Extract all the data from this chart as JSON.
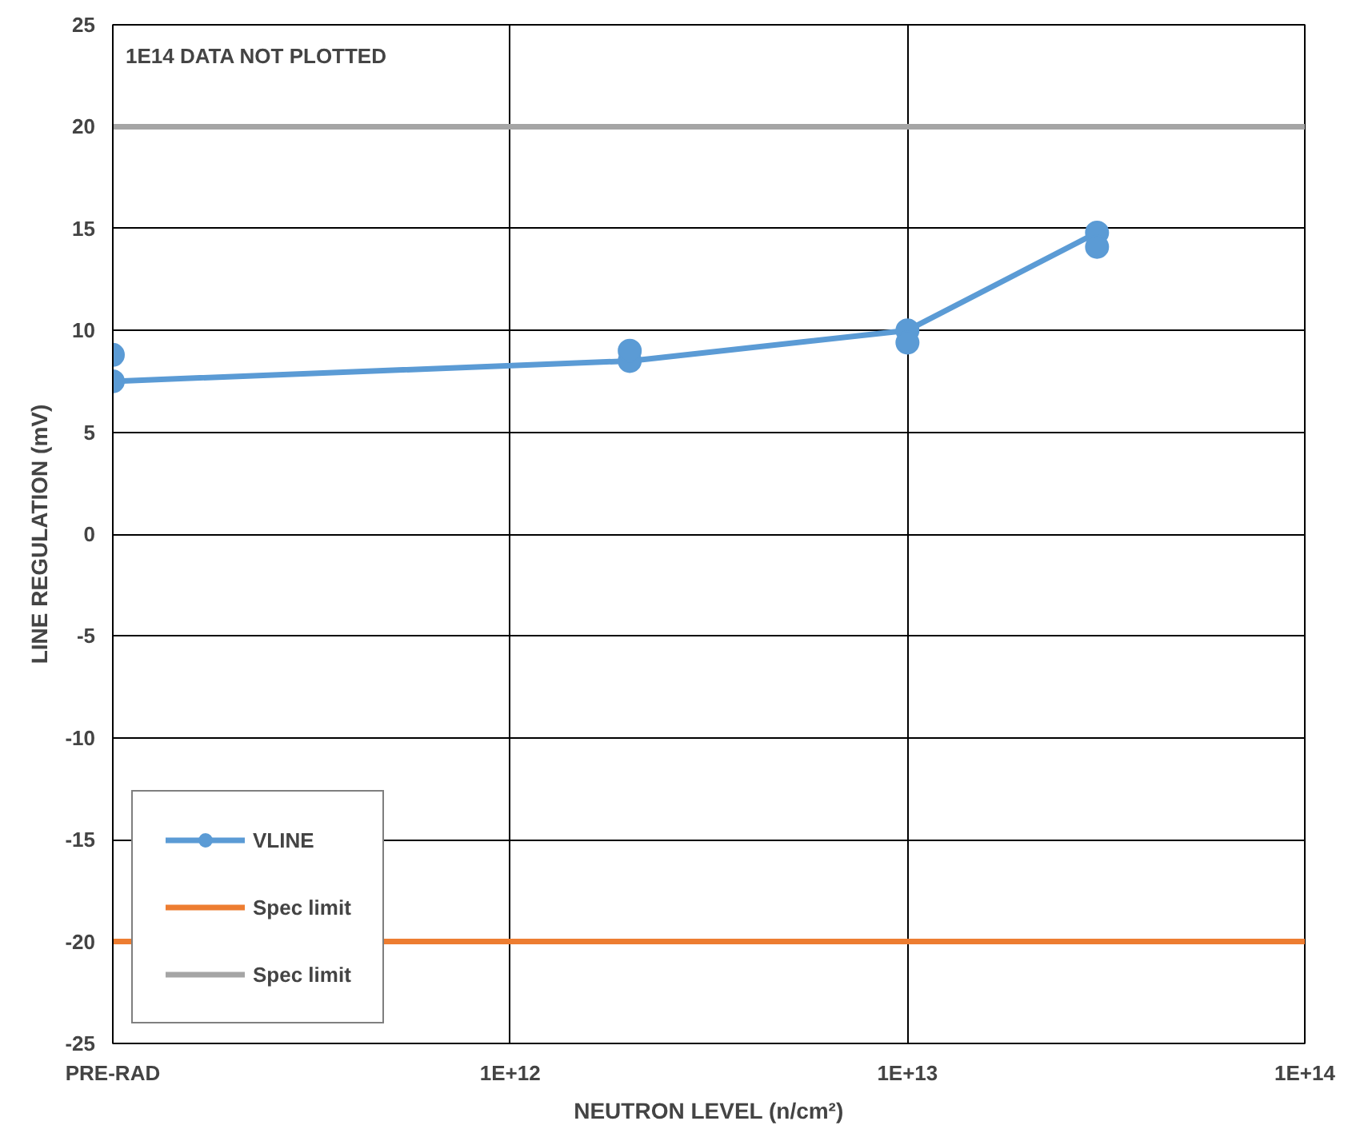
{
  "chart_data": {
    "type": "line",
    "xlabel": "NEUTRON LEVEL (n/cm²)",
    "ylabel": "LINE REGULATION (mV)",
    "log": "x",
    "xlim": [
      100000000000.0,
      100000000000000.0
    ],
    "xticks": [
      {
        "value": 100000000000.0,
        "label": "PRE-RAD"
      },
      {
        "value": 1000000000000.0,
        "label": "1E+12"
      },
      {
        "value": 10000000000000.0,
        "label": "1E+13"
      },
      {
        "value": 100000000000000.0,
        "label": "1E+14"
      }
    ],
    "ylim": [
      -25,
      25
    ],
    "yticks": [
      -25,
      -20,
      -15,
      -10,
      -5,
      0,
      5,
      10,
      15,
      20,
      25
    ],
    "grid": true,
    "legend": "bottom left",
    "annotations": [
      "1E14 DATA NOT PLOTTED"
    ],
    "series": [
      {
        "name": "VLINE",
        "marker": "circle",
        "color": "#5b9bd5",
        "x": [
          100000000000.0,
          2000000000000.0,
          10000000000000.0,
          30000000000000.0
        ],
        "values": [
          7.5,
          8.5,
          10.0,
          14.8
        ]
      },
      {
        "type": "scatter",
        "marker": "circle",
        "color": "#5b9bd5",
        "x": [
          100000000000.0,
          2000000000000.0,
          10000000000000.0,
          30000000000000.0
        ],
        "values": [
          8.8,
          9.0,
          9.4,
          14.1
        ]
      },
      {
        "name": "Spec limit",
        "marker": "none",
        "color": "#ed7d31",
        "x": [
          100000000000.0,
          100000000000000.0
        ],
        "values": [
          -20,
          -20
        ]
      },
      {
        "name": "Spec limit",
        "marker": "none",
        "color": "#a5a5a5",
        "x": [
          100000000000.0,
          100000000000000.0
        ],
        "values": [
          20,
          20
        ]
      }
    ]
  }
}
